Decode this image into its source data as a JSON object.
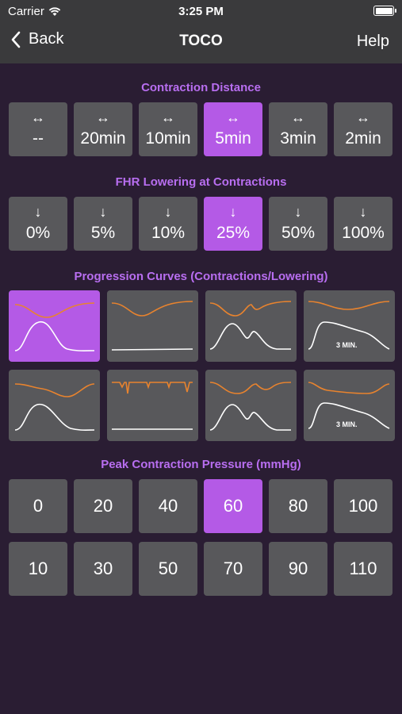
{
  "status": {
    "carrier": "Carrier",
    "time": "3:25 PM"
  },
  "nav": {
    "back": "Back",
    "title": "TOCO",
    "help": "Help"
  },
  "contraction_distance": {
    "title": "Contraction Distance",
    "options": [
      "--",
      "20min",
      "10min",
      "5min",
      "3min",
      "2min"
    ],
    "selected": "5min"
  },
  "fhr_lowering": {
    "title": "FHR Lowering at Contractions",
    "options": [
      "0%",
      "5%",
      "10%",
      "25%",
      "50%",
      "100%"
    ],
    "selected": "25%"
  },
  "progression_curves": {
    "title": "Progression Curves (Contractions/Lowering)",
    "selected_index": 0,
    "tags": [
      "3 MIN.",
      "3 MIN."
    ]
  },
  "peak_pressure": {
    "title": "Peak Contraction Pressure (mmHg)",
    "row1": [
      "0",
      "20",
      "40",
      "60",
      "80",
      "100"
    ],
    "row2": [
      "10",
      "30",
      "50",
      "70",
      "90",
      "110"
    ],
    "selected": "60"
  },
  "colors": {
    "accent": "#b45ae6",
    "title": "#b86ef0",
    "button": "#58585b",
    "background": "#2a1d33",
    "fhr_curve": "#e8832e"
  },
  "icons": {
    "distance": "left-right-arrow-icon",
    "lowering": "down-arrow-icon"
  }
}
